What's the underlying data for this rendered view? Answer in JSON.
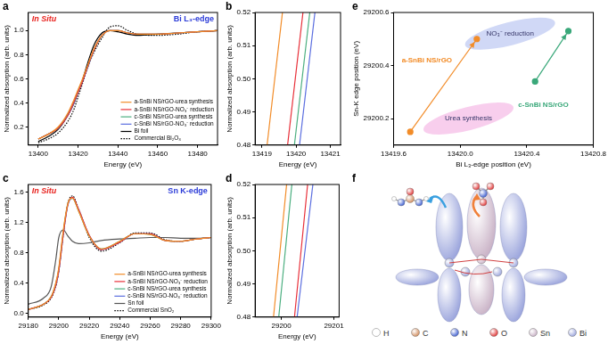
{
  "chart_data": [
    {
      "panel": "a",
      "type": "line",
      "annotations": [
        {
          "text": "In Situ",
          "color": "#e8231f"
        },
        {
          "text": "Bi L₃-edge",
          "color": "#2b3bd8"
        }
      ],
      "x_label": "Energy (eV)",
      "y_label": "Normalized absorption (arb. units)",
      "x": [
        13400,
        13405,
        13410,
        13415,
        13418,
        13420,
        13422,
        13425,
        13428,
        13432,
        13436,
        13440,
        13445,
        13450,
        13460,
        13470,
        13480,
        13490
      ],
      "series": [
        {
          "name": "a-SnBi NS/rGO-urea synthesis",
          "color": "#f28c28",
          "line_style": "solid",
          "values": [
            0.1,
            0.14,
            0.2,
            0.32,
            0.43,
            0.51,
            0.59,
            0.72,
            0.85,
            0.96,
            1.0,
            1.0,
            0.98,
            0.97,
            0.97,
            0.98,
            0.99,
            1.0
          ]
        },
        {
          "name": "a-SnBi NS/rGO-NO₃⁻ reduction",
          "color": "#e8303a",
          "line_style": "solid",
          "values": [
            0.1,
            0.14,
            0.19,
            0.3,
            0.41,
            0.49,
            0.57,
            0.71,
            0.84,
            0.96,
            1.0,
            1.0,
            0.98,
            0.97,
            0.97,
            0.98,
            0.99,
            1.0
          ]
        },
        {
          "name": "c-SnBi NS/rGO-urea synthesis",
          "color": "#4caf80",
          "line_style": "solid",
          "values": [
            0.1,
            0.14,
            0.19,
            0.31,
            0.41,
            0.5,
            0.58,
            0.71,
            0.84,
            0.96,
            1.0,
            1.0,
            0.98,
            0.97,
            0.97,
            0.98,
            0.99,
            1.0
          ]
        },
        {
          "name": "c-SnBi NS/rGO-NO₃⁻ reduction",
          "color": "#5b6ee0",
          "line_style": "solid",
          "values": [
            0.1,
            0.14,
            0.19,
            0.3,
            0.4,
            0.49,
            0.57,
            0.7,
            0.84,
            0.96,
            1.0,
            1.0,
            0.98,
            0.97,
            0.97,
            0.98,
            0.99,
            1.0
          ]
        },
        {
          "name": "Bi foil",
          "color": "#000000",
          "line_style": "solid",
          "values": [
            0.08,
            0.12,
            0.18,
            0.3,
            0.4,
            0.49,
            0.58,
            0.74,
            0.88,
            0.98,
            1.0,
            0.99,
            0.97,
            0.96,
            0.97,
            0.98,
            0.99,
            1.0
          ]
        },
        {
          "name": "Commercial Bi₂O₃",
          "color": "#000000",
          "line_style": "dotted",
          "values": [
            0.07,
            0.1,
            0.15,
            0.25,
            0.35,
            0.45,
            0.55,
            0.7,
            0.82,
            0.94,
            1.03,
            1.04,
            1.0,
            0.97,
            0.96,
            0.97,
            0.99,
            1.0
          ]
        }
      ],
      "xlim": [
        13395,
        13490
      ],
      "xticks": [
        13400,
        13420,
        13440,
        13460,
        13480
      ],
      "ylim": [
        0.05,
        1.15
      ],
      "yticks": [
        0.2,
        0.4,
        0.6,
        0.8,
        {
          "value": 1.0,
          "label": "1.0"
        }
      ],
      "grid": false,
      "legend": "lower right"
    },
    {
      "panel": "b",
      "type": "line",
      "x_label": "Energy (eV)",
      "y_label": "Normalized absorption (arb. units)",
      "series": [
        {
          "color": "#f28c28",
          "x": [
            13419.15,
            13419.6
          ],
          "values": [
            0.48,
            0.52
          ]
        },
        {
          "color": "#e8303a",
          "x": [
            13419.75,
            13420.2
          ],
          "values": [
            0.48,
            0.52
          ]
        },
        {
          "color": "#4caf80",
          "x": [
            13419.95,
            13420.4
          ],
          "values": [
            0.48,
            0.52
          ]
        },
        {
          "color": "#5b6ee0",
          "x": [
            13420.1,
            13420.55
          ],
          "values": [
            0.48,
            0.52
          ]
        }
      ],
      "xlim": [
        13418.8,
        13421.3
      ],
      "xticks": [
        13419,
        13420,
        13421
      ],
      "ylim": [
        0.48,
        0.52
      ],
      "yticks": [
        0.48,
        0.49,
        {
          "value": 0.5,
          "label": "0.50"
        },
        0.51,
        0.52
      ],
      "grid": false
    },
    {
      "panel": "c",
      "type": "line",
      "annotations": [
        {
          "text": "In Situ",
          "color": "#e8231f"
        },
        {
          "text": "Sn K-edge",
          "color": "#2b3bd8"
        }
      ],
      "x_label": "Energy (eV)",
      "y_label": "Normalized absorption (arb. units)",
      "x": [
        29180,
        29190,
        29195,
        29198,
        29200,
        29203,
        29206,
        29209,
        29213,
        29220,
        29228,
        29240,
        29250,
        29260,
        29270,
        29280,
        29290,
        29300
      ],
      "series": [
        {
          "name": "a-SnBi NS/rGO-urea synthesis",
          "color": "#f28c28",
          "line_style": "solid",
          "values": [
            0.05,
            0.12,
            0.22,
            0.4,
            0.6,
            1.1,
            1.45,
            1.52,
            1.35,
            1.02,
            0.85,
            0.95,
            1.05,
            1.04,
            0.96,
            0.95,
            0.98,
            1.0
          ]
        },
        {
          "name": "a-SnBi NS/rGO-NO₃⁻ reduction",
          "color": "#e8303a",
          "line_style": "solid",
          "values": [
            0.05,
            0.12,
            0.21,
            0.37,
            0.56,
            1.05,
            1.44,
            1.53,
            1.37,
            1.03,
            0.84,
            0.94,
            1.05,
            1.05,
            0.96,
            0.95,
            0.98,
            1.0
          ]
        },
        {
          "name": "c-SnBi NS/rGO-urea synthesis",
          "color": "#4caf80",
          "line_style": "solid",
          "values": [
            0.05,
            0.12,
            0.22,
            0.39,
            0.58,
            1.08,
            1.45,
            1.52,
            1.35,
            1.02,
            0.85,
            0.95,
            1.05,
            1.04,
            0.96,
            0.95,
            0.98,
            1.0
          ]
        },
        {
          "name": "c-SnBi NS/rGO-NO₃⁻ reduction",
          "color": "#5b6ee0",
          "line_style": "solid",
          "values": [
            0.05,
            0.12,
            0.21,
            0.36,
            0.55,
            1.04,
            1.43,
            1.52,
            1.37,
            1.03,
            0.84,
            0.94,
            1.05,
            1.05,
            0.96,
            0.95,
            0.98,
            1.0
          ]
        },
        {
          "name": "Sn foil",
          "color": "#555555",
          "line_style": "solid",
          "values": [
            0.12,
            0.2,
            0.35,
            0.7,
            1.0,
            1.1,
            1.02,
            0.95,
            0.92,
            0.93,
            0.96,
            0.98,
            0.99,
            1.0,
            1.0,
            0.99,
            0.99,
            1.0
          ]
        },
        {
          "name": "Commercial SnO₂",
          "color": "#000000",
          "line_style": "dotted",
          "values": [
            0.05,
            0.11,
            0.2,
            0.35,
            0.55,
            1.05,
            1.45,
            1.55,
            1.38,
            1.0,
            0.82,
            0.93,
            1.06,
            1.06,
            0.97,
            0.95,
            0.98,
            1.0
          ]
        }
      ],
      "xlim": [
        29180,
        29300
      ],
      "xticks": [
        29180,
        29200,
        29220,
        29240,
        29260,
        29280,
        29300
      ],
      "ylim": [
        -0.05,
        1.7
      ],
      "yticks": [
        {
          "value": 0,
          "label": "0.0"
        },
        0.4,
        0.8,
        1.2,
        1.6
      ],
      "grid": false,
      "legend": "lower right"
    },
    {
      "panel": "d",
      "type": "line",
      "x_label": "Energy (eV)",
      "y_label": "Normalized absorption (arb. units)",
      "series": [
        {
          "color": "#f28c28",
          "x": [
            29199.85,
            29200.1
          ],
          "values": [
            0.48,
            0.52
          ]
        },
        {
          "color": "#4caf80",
          "x": [
            29199.95,
            29200.2
          ],
          "values": [
            0.48,
            0.52
          ]
        },
        {
          "color": "#e8303a",
          "x": [
            29200.25,
            29200.5
          ],
          "values": [
            0.48,
            0.52
          ]
        },
        {
          "color": "#5b6ee0",
          "x": [
            29200.3,
            29200.6
          ],
          "values": [
            0.48,
            0.52
          ]
        }
      ],
      "xlim": [
        29199.5,
        29201.1
      ],
      "xticks": [
        29200,
        29201
      ],
      "ylim": [
        0.48,
        0.52
      ],
      "yticks": [
        0.48,
        0.49,
        {
          "value": 0.5,
          "label": "0.50"
        },
        0.51,
        0.52
      ],
      "grid": false
    },
    {
      "panel": "e",
      "type": "scatter",
      "x_label": "Bi L₃-edge position (eV)",
      "y_label": "Sn-K edge position (eV)",
      "series": [
        {
          "color": "#f28c28",
          "marker": "circle",
          "x": [
            13419.7,
            13420.1
          ],
          "values": [
            29200.15,
            29200.5
          ]
        },
        {
          "color": "#3aa87a",
          "marker": "circle",
          "x": [
            13420.45,
            13420.65
          ],
          "values": [
            29200.34,
            29200.53
          ]
        }
      ],
      "regions": [
        {
          "text": "NO₃⁻ reduction",
          "x": 13420.3,
          "y": 29200.52,
          "color": "#aab8ee"
        },
        {
          "text": "Urea synthesis",
          "x": 13420.05,
          "y": 29200.2,
          "color": "#f3a6df"
        }
      ],
      "annotations": [
        {
          "text": "a-SnBi NS/rGO",
          "x": 13419.8,
          "y": 29200.42,
          "color": "#f28c28"
        },
        {
          "text": "c-SnBi NS/rGO",
          "x": 13420.5,
          "y": 29200.25,
          "color": "#3aa87a"
        }
      ],
      "xlim": [
        13419.6,
        13420.8
      ],
      "xticks": [
        13419.6,
        {
          "value": 13420.0,
          "label": "13420.0"
        },
        13420.4,
        13420.8
      ],
      "ylim": [
        29200.1,
        29200.6
      ],
      "yticks": [
        29200.2,
        29200.4,
        29200.6
      ],
      "grid": false
    }
  ],
  "diagram": {
    "panel": "f",
    "legend": [
      {
        "label": "H",
        "color": "#ffffff"
      },
      {
        "label": "C",
        "color": "#d08a5a"
      },
      {
        "label": "N",
        "color": "#3a5bd0"
      },
      {
        "label": "O",
        "color": "#e03030"
      },
      {
        "label": "Sn",
        "color": "#c9b2c6"
      },
      {
        "label": "Bi",
        "color": "#9aa4dc"
      }
    ]
  }
}
